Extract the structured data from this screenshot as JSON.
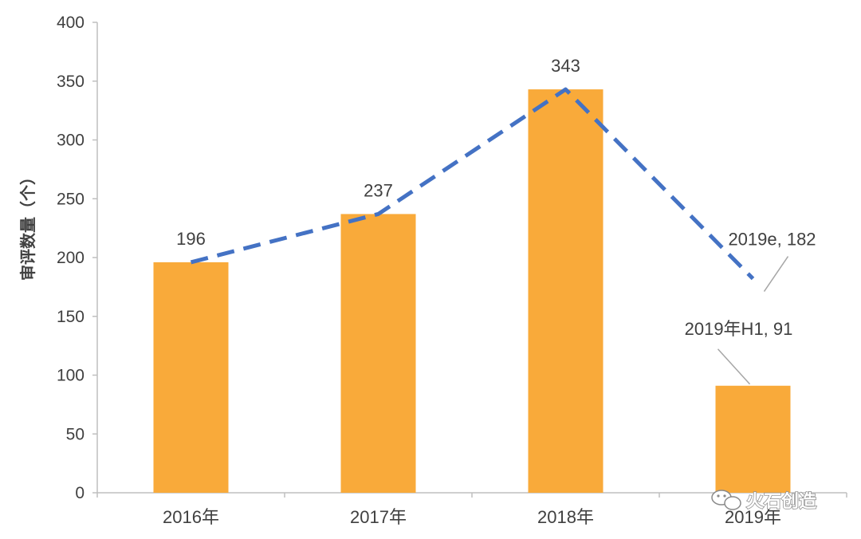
{
  "chart_data": {
    "type": "bar",
    "categories": [
      "2016年",
      "2017年",
      "2018年",
      "2019年"
    ],
    "ylabel": "审评数量（个）",
    "ylim": [
      0,
      400
    ],
    "yticks": [
      "0",
      "50",
      "100",
      "150",
      "200",
      "250",
      "300",
      "350",
      "400"
    ],
    "bars": [
      {
        "category": "2016年",
        "value": 196,
        "label": "196"
      },
      {
        "category": "2017年",
        "value": 237,
        "label": "237"
      },
      {
        "category": "2018年",
        "value": 343,
        "label": "343"
      },
      {
        "category": "2019年",
        "value": 91,
        "label": "2019年H1, 91"
      }
    ],
    "line": {
      "style": "dashed",
      "values": [
        196,
        237,
        343,
        182
      ],
      "end_label": "2019e, 182"
    },
    "colors": {
      "bar": "#F9AA3A",
      "line": "#4472C4",
      "axis": "#BFBFBF",
      "text": "#404040"
    },
    "grid": false
  },
  "watermark": {
    "text": "火石创造",
    "icon": "wechat-icon"
  }
}
